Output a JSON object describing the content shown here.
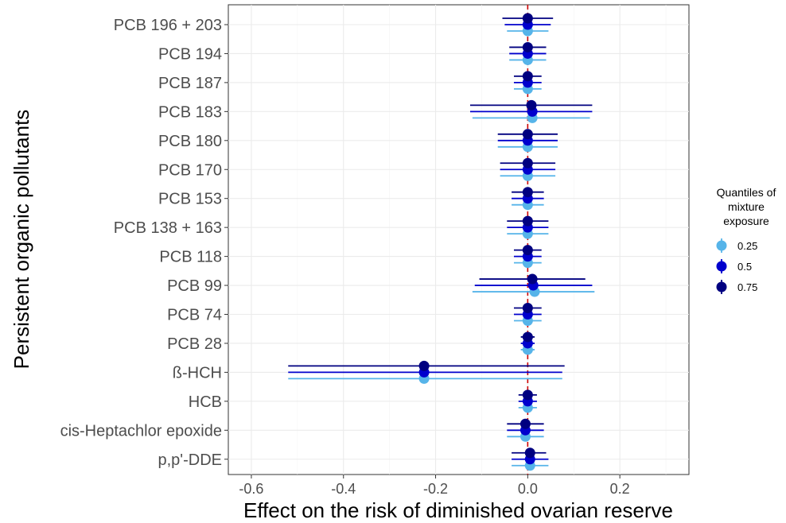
{
  "chart_data": {
    "type": "scatter",
    "subtype": "forest-plot",
    "xlabel": "Effect on the risk of diminished ovarian reserve",
    "ylabel": "Persistent organic pollutants",
    "xlim": [
      -0.65,
      0.35
    ],
    "x_ticks": [
      -0.6,
      -0.4,
      -0.2,
      0.0,
      0.2
    ],
    "x_tick_labels": [
      "-0.6",
      "-0.4",
      "-0.2",
      "0.0",
      "0.2"
    ],
    "reference_line": {
      "x": 0,
      "color": "#cc0000",
      "style": "dashed"
    },
    "grid": true,
    "categories": [
      "PCB 196 + 203",
      "PCB 194",
      "PCB 187",
      "PCB 183",
      "PCB 180",
      "PCB 170",
      "PCB 153",
      "PCB 138 + 163",
      "PCB 118",
      "PCB 99",
      "PCB 74",
      "PCB 28",
      "ß-HCH",
      "HCB",
      "cis-Heptachlor epoxide",
      "p,p'-DDE"
    ],
    "legend": {
      "title": "Quantiles of mixture exposure",
      "title_lines": [
        "Quantiles of",
        "mixture",
        "exposure"
      ],
      "position": "right"
    },
    "series": [
      {
        "name": "0.25",
        "color": "#56b4e9",
        "estimate": [
          0.0,
          0.0,
          0.0,
          0.01,
          0.0,
          0.0,
          0.0,
          0.0,
          0.0,
          0.015,
          0.0,
          0.0,
          -0.225,
          0.0,
          -0.005,
          0.005
        ],
        "lower": [
          -0.045,
          -0.04,
          -0.03,
          -0.12,
          -0.065,
          -0.06,
          -0.035,
          -0.045,
          -0.03,
          -0.12,
          -0.03,
          -0.015,
          -0.52,
          -0.02,
          -0.045,
          -0.035
        ],
        "upper": [
          0.045,
          0.04,
          0.03,
          0.135,
          0.065,
          0.06,
          0.035,
          0.045,
          0.03,
          0.145,
          0.03,
          0.015,
          0.075,
          0.02,
          0.035,
          0.045
        ]
      },
      {
        "name": "0.5",
        "color": "#0000cd",
        "estimate": [
          0.0,
          0.0,
          0.0,
          0.01,
          0.0,
          0.0,
          0.0,
          0.0,
          0.0,
          0.012,
          0.0,
          0.0,
          -0.225,
          0.0,
          -0.005,
          0.005
        ],
        "lower": [
          -0.05,
          -0.04,
          -0.03,
          -0.125,
          -0.065,
          -0.06,
          -0.035,
          -0.045,
          -0.03,
          -0.115,
          -0.03,
          -0.015,
          -0.52,
          -0.02,
          -0.045,
          -0.035
        ],
        "upper": [
          0.05,
          0.04,
          0.03,
          0.14,
          0.065,
          0.06,
          0.035,
          0.045,
          0.03,
          0.14,
          0.03,
          0.015,
          0.075,
          0.02,
          0.035,
          0.045
        ]
      },
      {
        "name": "0.75",
        "color": "#000080",
        "estimate": [
          0.0,
          0.0,
          0.0,
          0.008,
          0.0,
          0.0,
          0.0,
          0.0,
          0.0,
          0.01,
          0.0,
          0.0,
          -0.225,
          0.0,
          -0.005,
          0.005
        ],
        "lower": [
          -0.055,
          -0.04,
          -0.03,
          -0.125,
          -0.065,
          -0.06,
          -0.035,
          -0.045,
          -0.03,
          -0.105,
          -0.03,
          -0.015,
          -0.52,
          -0.02,
          -0.045,
          -0.035
        ],
        "upper": [
          0.055,
          0.04,
          0.03,
          0.14,
          0.065,
          0.06,
          0.035,
          0.045,
          0.03,
          0.125,
          0.03,
          0.015,
          0.08,
          0.02,
          0.035,
          0.04
        ]
      }
    ]
  }
}
